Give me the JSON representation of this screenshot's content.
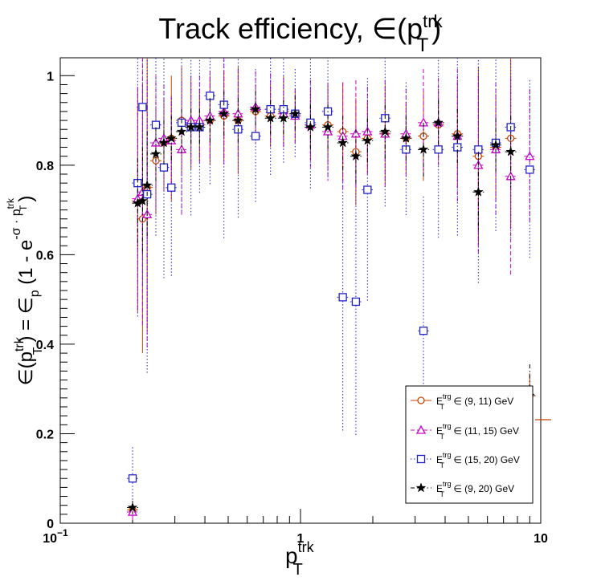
{
  "title": {
    "main": "Track efficiency, ∈(p",
    "sup": "trk",
    "sub": "T",
    "tail": ")"
  },
  "y_axis_label": {
    "lead": "∈(p",
    "sup1": "trk",
    "sub1": "T",
    "mid": ") = ∈",
    "sub2": "p",
    "paren": " (1 - e",
    "exp": "-σ · p",
    "expsup": "trk",
    "expsub": "T",
    "tail": ")"
  },
  "x_axis_label": {
    "main": "p",
    "sup": "trk",
    "sub": "T"
  },
  "x_ticks": [
    {
      "value": 0.1,
      "label": "10",
      "sup": "−1"
    },
    {
      "value": 1,
      "label": "1",
      "sup": ""
    },
    {
      "value": 10,
      "label": "10",
      "sup": ""
    }
  ],
  "y_ticks": [
    {
      "value": 0,
      "label": "0"
    },
    {
      "value": 0.2,
      "label": "0.2"
    },
    {
      "value": 0.4,
      "label": "0.4"
    },
    {
      "value": 0.6,
      "label": "0.6"
    },
    {
      "value": 0.8,
      "label": "0.8"
    },
    {
      "value": 1,
      "label": "1"
    }
  ],
  "chart_data": {
    "type": "scatter",
    "x_scale": "log",
    "xlim": [
      0.1,
      10
    ],
    "ylim": [
      0,
      1.04
    ],
    "grid": false,
    "legend_position": "bottom-right",
    "series": [
      {
        "legend": {
          "main": "E",
          "sup": "trg",
          "sub": "T",
          "text": " ∈ (9, 11) GeV"
        },
        "color": "#cc4400",
        "marker": "open-circle",
        "line": "solid",
        "x": [
          0.2,
          0.21,
          0.22,
          0.23,
          0.25,
          0.27,
          0.29,
          0.32,
          0.35,
          0.38,
          0.42,
          0.48,
          0.55,
          0.65,
          0.75,
          0.85,
          0.95,
          1.1,
          1.3,
          1.5,
          1.7,
          1.9,
          2.25,
          2.75,
          3.25,
          3.75,
          4.5,
          5.5,
          6.5,
          7.5,
          9.0
        ],
        "y": [
          0.03,
          0.72,
          0.68,
          0.75,
          0.81,
          0.85,
          0.86,
          0.9,
          0.89,
          0.89,
          0.9,
          0.91,
          0.9,
          0.92,
          0.91,
          0.92,
          0.91,
          0.89,
          0.89,
          0.875,
          0.83,
          0.86,
          0.87,
          0.86,
          0.865,
          0.89,
          0.87,
          0.82,
          0.84,
          0.86,
          0.285
        ],
        "yerr": [
          0.02,
          0.25,
          0.3,
          0.32,
          0.12,
          0.1,
          0.14,
          0.12,
          0.1,
          0.08,
          0.1,
          0.1,
          0.12,
          0.06,
          0.07,
          0.08,
          0.06,
          0.08,
          0.09,
          0.11,
          0.12,
          0.08,
          0.11,
          0.08,
          0.1,
          0.08,
          0.12,
          0.2,
          0.12,
          0.2,
          0.05
        ]
      },
      {
        "legend": {
          "main": "E",
          "sup": "trg",
          "sub": "T",
          "text": " ∈ (11, 15) GeV"
        },
        "color": "#cc00cc",
        "marker": "open-triangle",
        "line": "dashed",
        "x": [
          0.2,
          0.21,
          0.22,
          0.23,
          0.25,
          0.27,
          0.29,
          0.32,
          0.35,
          0.38,
          0.42,
          0.48,
          0.55,
          0.65,
          0.75,
          0.85,
          0.95,
          1.1,
          1.3,
          1.5,
          1.7,
          1.9,
          2.25,
          2.75,
          3.25,
          3.75,
          4.5,
          5.5,
          6.5,
          7.5,
          9.0
        ],
        "y": [
          0.025,
          0.725,
          0.74,
          0.69,
          0.85,
          0.86,
          0.855,
          0.835,
          0.9,
          0.9,
          0.91,
          0.92,
          0.915,
          0.93,
          0.925,
          0.915,
          0.91,
          0.89,
          0.875,
          0.865,
          0.87,
          0.875,
          0.87,
          0.87,
          0.895,
          0.895,
          0.865,
          0.8,
          0.835,
          0.775,
          0.82
        ],
        "yerr": [
          0.02,
          0.25,
          0.3,
          0.3,
          0.15,
          0.12,
          0.1,
          0.15,
          0.1,
          0.1,
          0.1,
          0.12,
          0.1,
          0.08,
          0.08,
          0.08,
          0.06,
          0.1,
          0.11,
          0.12,
          0.12,
          0.1,
          0.12,
          0.1,
          0.12,
          0.1,
          0.15,
          0.2,
          0.15,
          0.22,
          0.15
        ]
      },
      {
        "legend": {
          "main": "E",
          "sup": "trg",
          "sub": "T",
          "text": " ∈ (15, 20) GeV"
        },
        "color": "#2222cc",
        "marker": "open-square",
        "line": "dotted",
        "x": [
          0.2,
          0.21,
          0.22,
          0.23,
          0.25,
          0.27,
          0.29,
          0.32,
          0.35,
          0.38,
          0.42,
          0.48,
          0.55,
          0.65,
          0.75,
          0.85,
          0.95,
          1.1,
          1.3,
          1.5,
          1.7,
          1.9,
          2.25,
          2.75,
          3.25,
          3.75,
          4.5,
          5.5,
          6.5,
          7.5,
          9.0
        ],
        "y": [
          0.1,
          0.76,
          0.93,
          0.735,
          0.89,
          0.795,
          0.75,
          0.895,
          0.885,
          0.885,
          0.955,
          0.935,
          0.88,
          0.865,
          0.925,
          0.925,
          0.915,
          0.895,
          0.92,
          0.505,
          0.495,
          0.745,
          0.905,
          0.835,
          0.43,
          0.835,
          0.84,
          0.835,
          0.85,
          0.885,
          0.79
        ],
        "yerr": [
          0.07,
          0.3,
          0.4,
          0.4,
          0.25,
          0.25,
          0.2,
          0.2,
          0.2,
          0.15,
          0.2,
          0.3,
          0.2,
          0.15,
          0.15,
          0.12,
          0.1,
          0.15,
          0.15,
          0.3,
          0.3,
          0.25,
          0.2,
          0.15,
          0.3,
          0.2,
          0.2,
          0.3,
          0.2,
          0.25,
          0.2
        ]
      },
      {
        "legend": {
          "main": "E",
          "sup": "trg",
          "sub": "T",
          "text": " ∈ (9, 20) GeV"
        },
        "color": "#000000",
        "marker": "star",
        "line": "dashdot",
        "x": [
          0.2,
          0.21,
          0.22,
          0.23,
          0.25,
          0.27,
          0.29,
          0.32,
          0.35,
          0.38,
          0.42,
          0.48,
          0.55,
          0.65,
          0.75,
          0.85,
          0.95,
          1.1,
          1.3,
          1.5,
          1.7,
          1.9,
          2.25,
          2.75,
          3.25,
          3.75,
          4.5,
          5.5,
          6.5,
          7.5,
          9.0
        ],
        "y": [
          0.035,
          0.715,
          0.72,
          0.755,
          0.825,
          0.85,
          0.86,
          0.875,
          0.885,
          0.885,
          0.9,
          0.915,
          0.9,
          0.925,
          0.905,
          0.905,
          0.915,
          0.885,
          0.885,
          0.85,
          0.82,
          0.855,
          0.875,
          0.86,
          0.835,
          0.895,
          0.865,
          0.74,
          0.845,
          0.83,
          0.285
        ],
        "yerr": [
          0.015,
          0.1,
          0.12,
          0.12,
          0.06,
          0.05,
          0.05,
          0.05,
          0.04,
          0.04,
          0.05,
          0.05,
          0.05,
          0.04,
          0.04,
          0.04,
          0.04,
          0.05,
          0.05,
          0.06,
          0.06,
          0.05,
          0.06,
          0.05,
          0.06,
          0.05,
          0.06,
          0.09,
          0.06,
          0.08,
          0.07
        ]
      }
    ]
  }
}
